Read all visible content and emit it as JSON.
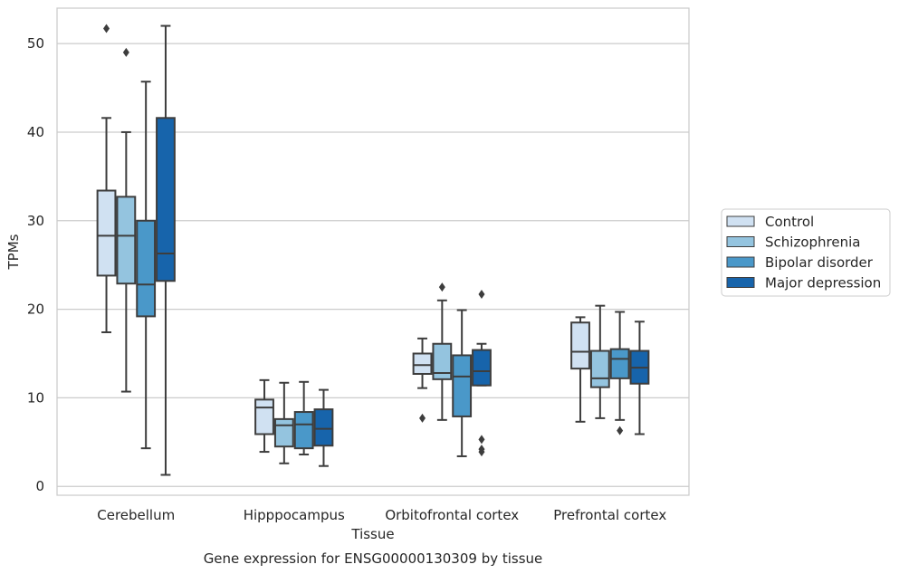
{
  "chart_data": {
    "type": "box",
    "title": "",
    "caption": "Gene expression for ENSG00000130309 by tissue",
    "xlabel": "Tissue",
    "ylabel": "TPMs",
    "ylim": [
      -1,
      54
    ],
    "yticks": [
      0,
      10,
      20,
      30,
      40,
      50
    ],
    "grid": true,
    "legend_position": "right",
    "categories": [
      "Cerebellum",
      "Hipppocampus",
      "Orbitofrontal cortex",
      "Prefrontal cortex"
    ],
    "series": [
      {
        "name": "Control",
        "color": "#d0e1f2",
        "boxes": [
          {
            "whisker_low": 17.4,
            "q1": 23.8,
            "median": 28.3,
            "q3": 33.4,
            "whisker_high": 41.6,
            "outliers": [
              51.7
            ]
          },
          {
            "whisker_low": 3.9,
            "q1": 5.9,
            "median": 8.9,
            "q3": 9.8,
            "whisker_high": 12.0,
            "outliers": []
          },
          {
            "whisker_low": 11.1,
            "q1": 12.7,
            "median": 13.7,
            "q3": 15.0,
            "whisker_high": 16.7,
            "outliers": [
              7.7
            ]
          },
          {
            "whisker_low": 7.3,
            "q1": 13.3,
            "median": 15.2,
            "q3": 18.5,
            "whisker_high": 19.1,
            "outliers": []
          }
        ]
      },
      {
        "name": "Schizophrenia",
        "color": "#94c4df",
        "boxes": [
          {
            "whisker_low": 10.7,
            "q1": 22.9,
            "median": 28.3,
            "q3": 32.7,
            "whisker_high": 40.0,
            "outliers": [
              49.0
            ]
          },
          {
            "whisker_low": 2.6,
            "q1": 4.5,
            "median": 6.9,
            "q3": 7.6,
            "whisker_high": 11.7,
            "outliers": []
          },
          {
            "whisker_low": 7.5,
            "q1": 12.1,
            "median": 12.8,
            "q3": 16.1,
            "whisker_high": 21.0,
            "outliers": [
              22.5
            ]
          },
          {
            "whisker_low": 7.7,
            "q1": 11.2,
            "median": 12.2,
            "q3": 15.3,
            "whisker_high": 20.4,
            "outliers": []
          }
        ]
      },
      {
        "name": "Bipolar disorder",
        "color": "#4a98c9",
        "boxes": [
          {
            "whisker_low": 4.3,
            "q1": 19.2,
            "median": 22.8,
            "q3": 30.0,
            "whisker_high": 45.7,
            "outliers": []
          },
          {
            "whisker_low": 3.6,
            "q1": 4.3,
            "median": 7.0,
            "q3": 8.4,
            "whisker_high": 11.8,
            "outliers": []
          },
          {
            "whisker_low": 3.4,
            "q1": 7.9,
            "median": 12.4,
            "q3": 14.8,
            "whisker_high": 19.9,
            "outliers": []
          },
          {
            "whisker_low": 7.5,
            "q1": 12.2,
            "median": 14.4,
            "q3": 15.5,
            "whisker_high": 19.7,
            "outliers": [
              6.3
            ]
          }
        ]
      },
      {
        "name": "Major depression",
        "color": "#1764ab",
        "boxes": [
          {
            "whisker_low": 1.3,
            "q1": 23.2,
            "median": 26.3,
            "q3": 41.6,
            "whisker_high": 52.0,
            "outliers": []
          },
          {
            "whisker_low": 2.3,
            "q1": 4.6,
            "median": 6.5,
            "q3": 8.7,
            "whisker_high": 10.9,
            "outliers": []
          },
          {
            "whisker_low": 11.4,
            "q1": 11.4,
            "median": 13.0,
            "q3": 15.4,
            "whisker_high": 16.1,
            "outliers": [
              21.7,
              5.3,
              4.2,
              3.9
            ]
          },
          {
            "whisker_low": 5.9,
            "q1": 11.6,
            "median": 13.4,
            "q3": 15.3,
            "whisker_high": 18.6,
            "outliers": []
          }
        ]
      }
    ]
  }
}
